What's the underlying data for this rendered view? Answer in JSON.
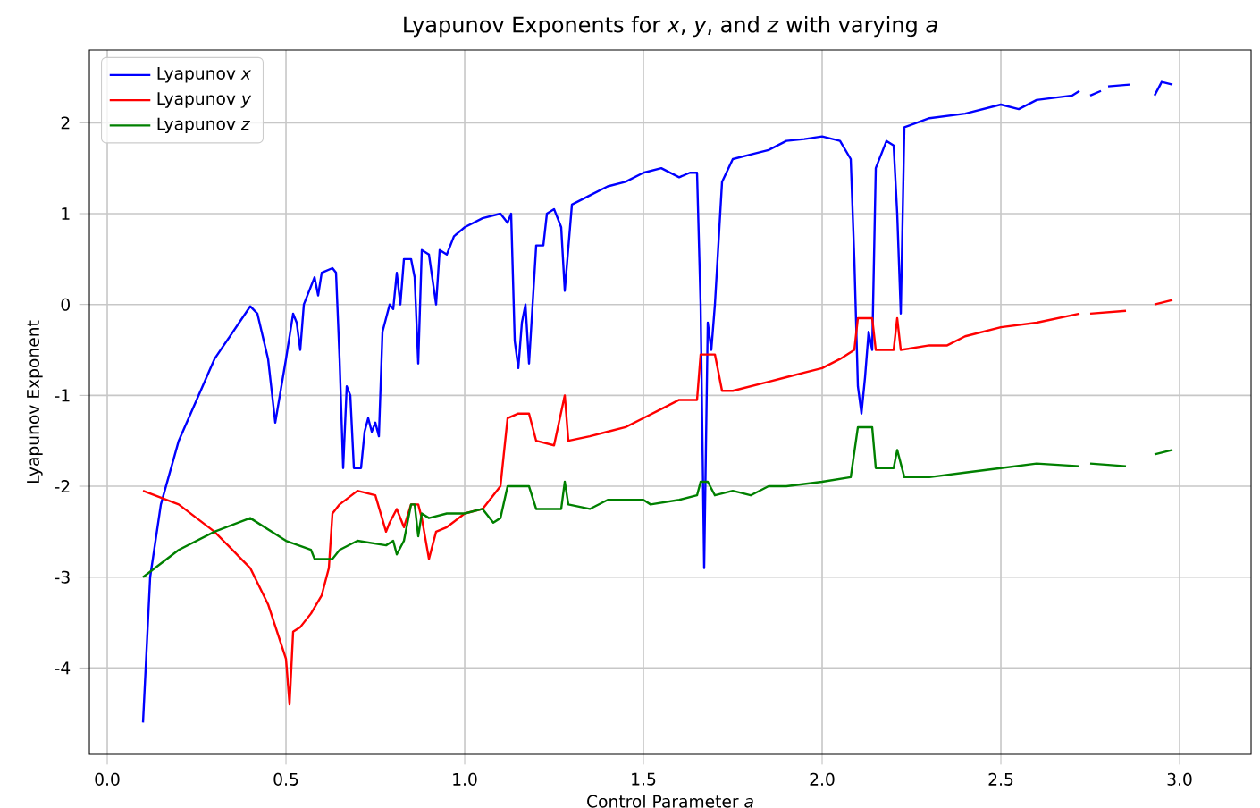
{
  "chart_data": {
    "type": "line",
    "title": "Lyapunov Exponents for *x*, *y*, and *z* with varying *a*",
    "xlabel": "Control Parameter *a*",
    "ylabel": "Lyapunov Exponent",
    "xlim": [
      -0.05,
      3.2
    ],
    "ylim": [
      -4.95,
      2.8
    ],
    "xticks": [
      {
        "value": 0,
        "label": "0.0"
      },
      {
        "value": 0.5,
        "label": "0.5"
      },
      {
        "value": 1,
        "label": "1.0"
      },
      {
        "value": 1.5,
        "label": "1.5"
      },
      {
        "value": 2,
        "label": "2.0"
      },
      {
        "value": 2.5,
        "label": "2.5"
      },
      {
        "value": 3,
        "label": "3.0"
      }
    ],
    "yticks": [
      -4,
      -3,
      -2,
      -1,
      0,
      1,
      2
    ],
    "grid": true,
    "legend": "top left",
    "line_style": "solid",
    "series": [
      {
        "name": "Lyapunov *x*",
        "color": "#0000ff",
        "x": [
          0.1,
          0.12,
          0.15,
          0.2,
          0.3,
          0.4,
          0.42,
          0.45,
          0.47,
          0.5,
          0.52,
          0.53,
          0.54,
          0.55,
          0.58,
          0.59,
          0.6,
          0.63,
          0.64,
          0.65,
          0.66,
          0.67,
          0.68,
          0.69,
          0.71,
          0.72,
          0.73,
          0.74,
          0.75,
          0.76,
          0.77,
          0.79,
          0.8,
          0.81,
          0.82,
          0.83,
          0.85,
          0.86,
          0.87,
          0.88,
          0.9,
          0.92,
          0.93,
          0.95,
          0.97,
          1.0,
          1.05,
          1.1,
          1.12,
          1.13,
          1.14,
          1.15,
          1.16,
          1.17,
          1.18,
          1.2,
          1.22,
          1.23,
          1.25,
          1.27,
          1.28,
          1.3,
          1.35,
          1.4,
          1.45,
          1.5,
          1.55,
          1.6,
          1.63,
          1.65,
          1.66,
          1.67,
          1.68,
          1.69,
          1.7,
          1.72,
          1.75,
          1.8,
          1.85,
          1.9,
          1.95,
          2.0,
          2.05,
          2.08,
          2.09,
          2.1,
          2.11,
          2.12,
          2.13,
          2.14,
          2.15,
          2.18,
          2.2,
          2.21,
          2.22,
          2.23,
          2.3,
          2.4,
          2.5,
          2.55,
          2.6,
          2.7,
          2.72,
          2.735,
          2.75,
          2.78,
          2.79,
          2.8,
          2.86,
          2.9,
          2.93,
          2.95,
          2.98
        ],
        "values": [
          -4.6,
          -3.0,
          -2.2,
          -1.5,
          -0.6,
          -0.02,
          -0.1,
          -0.6,
          -1.3,
          -0.6,
          -0.1,
          -0.2,
          -0.5,
          0.0,
          0.3,
          0.1,
          0.35,
          0.4,
          0.35,
          -0.6,
          -1.8,
          -0.9,
          -1.0,
          -1.8,
          -1.8,
          -1.4,
          -1.25,
          -1.4,
          -1.3,
          -1.45,
          -0.3,
          0.0,
          -0.05,
          0.35,
          0.0,
          0.5,
          0.5,
          0.3,
          -0.65,
          0.6,
          0.55,
          0.0,
          0.6,
          0.55,
          0.75,
          0.85,
          0.95,
          1.0,
          0.9,
          1.0,
          -0.4,
          -0.7,
          -0.2,
          0.0,
          -0.65,
          0.65,
          0.65,
          1.0,
          1.05,
          0.85,
          0.15,
          1.1,
          1.2,
          1.3,
          1.35,
          1.45,
          1.5,
          1.4,
          1.45,
          1.45,
          0.0,
          -2.9,
          -0.2,
          -0.5,
          0.0,
          1.35,
          1.6,
          1.65,
          1.7,
          1.8,
          1.82,
          1.85,
          1.8,
          1.6,
          0.5,
          -0.9,
          -1.2,
          -0.8,
          -0.3,
          -0.5,
          1.5,
          1.8,
          1.75,
          1.0,
          -0.1,
          1.95,
          2.05,
          2.1,
          2.2,
          2.15,
          2.25,
          2.3,
          2.35,
          null,
          2.3,
          2.35,
          null,
          2.4,
          2.42,
          null,
          2.3,
          2.45,
          2.42
        ]
      },
      {
        "name": "Lyapunov *y*",
        "color": "#ff0000",
        "x": [
          0.1,
          0.2,
          0.3,
          0.4,
          0.45,
          0.5,
          0.51,
          0.52,
          0.54,
          0.57,
          0.6,
          0.62,
          0.63,
          0.65,
          0.7,
          0.75,
          0.78,
          0.79,
          0.81,
          0.83,
          0.85,
          0.87,
          0.88,
          0.9,
          0.92,
          0.95,
          1.0,
          1.05,
          1.1,
          1.12,
          1.15,
          1.18,
          1.2,
          1.25,
          1.28,
          1.29,
          1.35,
          1.4,
          1.45,
          1.5,
          1.55,
          1.6,
          1.65,
          1.66,
          1.7,
          1.72,
          1.75,
          1.8,
          1.85,
          1.9,
          1.95,
          2.0,
          2.05,
          2.09,
          2.1,
          2.14,
          2.15,
          2.2,
          2.21,
          2.22,
          2.3,
          2.35,
          2.4,
          2.5,
          2.6,
          2.72,
          2.735,
          2.75,
          2.85,
          2.9,
          2.93,
          2.98
        ],
        "values": [
          -2.05,
          -2.2,
          -2.5,
          -2.9,
          -3.3,
          -3.9,
          -4.4,
          -3.6,
          -3.55,
          -3.4,
          -3.2,
          -2.9,
          -2.3,
          -2.2,
          -2.05,
          -2.1,
          -2.5,
          -2.4,
          -2.25,
          -2.45,
          -2.2,
          -2.2,
          -2.35,
          -2.8,
          -2.5,
          -2.45,
          -2.3,
          -2.25,
          -2.0,
          -1.25,
          -1.2,
          -1.2,
          -1.5,
          -1.55,
          -1.0,
          -1.5,
          -1.45,
          -1.4,
          -1.35,
          -1.25,
          -1.15,
          -1.05,
          -1.05,
          -0.55,
          -0.55,
          -0.95,
          -0.95,
          -0.9,
          -0.85,
          -0.8,
          -0.75,
          -0.7,
          -0.6,
          -0.5,
          -0.15,
          -0.15,
          -0.5,
          -0.5,
          -0.15,
          -0.5,
          -0.45,
          -0.45,
          -0.35,
          -0.25,
          -0.2,
          -0.1,
          null,
          -0.1,
          -0.07,
          null,
          0.0,
          0.05
        ]
      },
      {
        "name": "Lyapunov *z*",
        "color": "#008000",
        "x": [
          0.1,
          0.2,
          0.3,
          0.4,
          0.5,
          0.57,
          0.58,
          0.63,
          0.65,
          0.7,
          0.78,
          0.8,
          0.81,
          0.83,
          0.85,
          0.86,
          0.87,
          0.88,
          0.9,
          0.95,
          1.0,
          1.05,
          1.08,
          1.1,
          1.12,
          1.18,
          1.2,
          1.27,
          1.28,
          1.29,
          1.35,
          1.4,
          1.5,
          1.52,
          1.6,
          1.65,
          1.66,
          1.68,
          1.7,
          1.75,
          1.8,
          1.85,
          1.9,
          2.0,
          2.08,
          2.1,
          2.14,
          2.15,
          2.2,
          2.21,
          2.23,
          2.3,
          2.4,
          2.5,
          2.6,
          2.72,
          2.735,
          2.75,
          2.85,
          2.9,
          2.93,
          2.98
        ],
        "values": [
          -3.0,
          -2.7,
          -2.5,
          -2.35,
          -2.6,
          -2.7,
          -2.8,
          -2.8,
          -2.7,
          -2.6,
          -2.65,
          -2.6,
          -2.75,
          -2.6,
          -2.2,
          -2.2,
          -2.55,
          -2.3,
          -2.35,
          -2.3,
          -2.3,
          -2.25,
          -2.4,
          -2.35,
          -2.0,
          -2.0,
          -2.25,
          -2.25,
          -1.95,
          -2.2,
          -2.25,
          -2.15,
          -2.15,
          -2.2,
          -2.15,
          -2.1,
          -1.95,
          -1.95,
          -2.1,
          -2.05,
          -2.1,
          -2.0,
          -2.0,
          -1.95,
          -1.9,
          -1.35,
          -1.35,
          -1.8,
          -1.8,
          -1.6,
          -1.9,
          -1.9,
          -1.85,
          -1.8,
          -1.75,
          -1.78,
          null,
          -1.75,
          -1.78,
          null,
          -1.65,
          -1.6
        ]
      }
    ]
  }
}
